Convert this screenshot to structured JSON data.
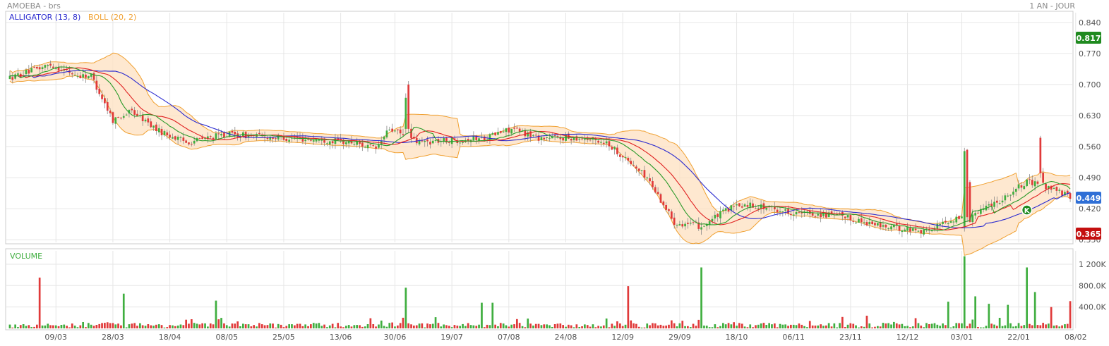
{
  "header": {
    "title": "AMOEBA - brs",
    "period": "1 AN - JOUR"
  },
  "price_panel": {
    "indicators": [
      {
        "label": "ALLIGATOR (13, 8)",
        "color": "#2b2bcf"
      },
      {
        "label": "BOLL (20, 2)",
        "color": "#f0a030"
      }
    ],
    "current_price": "0.817",
    "current_price_color": "#1f8a1f",
    "last_price": "0.449",
    "last_price_color": "#2f6fd6",
    "low_price": "0.365",
    "low_price_color": "#c40f0f",
    "marker_label": "K"
  },
  "volume_panel": {
    "title": "VOLUME"
  },
  "colors": {
    "up": "#3fae3f",
    "down": "#e03a3a",
    "band_fill": "#fde0c0",
    "band_line": "#f0a030",
    "alligator_blue": "#2b2bcf",
    "alligator_red": "#e02020",
    "alligator_green": "#2a9a2a",
    "grid": "#e6e6e6"
  },
  "chart_data": {
    "type": "candlestick",
    "x_tick_labels": [
      "09/03",
      "28/03",
      "18/04",
      "08/05",
      "25/05",
      "13/06",
      "30/06",
      "19/07",
      "07/08",
      "24/08",
      "12/09",
      "29/09",
      "18/10",
      "06/11",
      "23/11",
      "12/12",
      "03/01",
      "22/01",
      "08/02"
    ],
    "price_axis": {
      "ticks": [
        "0.840",
        "0.770",
        "0.700",
        "0.630",
        "0.560",
        "0.490",
        "0.420",
        "0.350"
      ],
      "range": [
        0.344,
        0.862
      ]
    },
    "volume_axis": {
      "ticks": [
        "1 200K",
        "800.0K",
        "400.0K"
      ],
      "range": [
        0,
        1450000
      ]
    },
    "price_keyframes": [
      [
        0,
        0.715
      ],
      [
        15,
        0.745
      ],
      [
        25,
        0.72
      ],
      [
        30,
        0.72
      ],
      [
        38,
        0.62
      ],
      [
        45,
        0.64
      ],
      [
        55,
        0.595
      ],
      [
        65,
        0.57
      ],
      [
        80,
        0.588
      ],
      [
        100,
        0.58
      ],
      [
        115,
        0.575
      ],
      [
        128,
        0.568
      ],
      [
        135,
        0.555
      ],
      [
        140,
        0.6
      ],
      [
        150,
        0.57
      ],
      [
        165,
        0.575
      ],
      [
        175,
        0.58
      ],
      [
        185,
        0.6
      ],
      [
        195,
        0.58
      ],
      [
        210,
        0.58
      ],
      [
        220,
        0.57
      ],
      [
        235,
        0.49
      ],
      [
        245,
        0.39
      ],
      [
        255,
        0.38
      ],
      [
        265,
        0.42
      ],
      [
        272,
        0.43
      ],
      [
        290,
        0.41
      ],
      [
        305,
        0.405
      ],
      [
        322,
        0.38
      ],
      [
        338,
        0.37
      ],
      [
        345,
        0.39
      ],
      [
        355,
        0.41
      ],
      [
        365,
        0.44
      ],
      [
        375,
        0.48
      ],
      [
        383,
        0.47
      ],
      [
        391,
        0.445
      ]
    ],
    "volume_spikes": [
      [
        11,
        950000
      ],
      [
        42,
        650000
      ],
      [
        76,
        520000
      ],
      [
        146,
        760000
      ],
      [
        174,
        480000
      ],
      [
        178,
        480000
      ],
      [
        228,
        790000
      ],
      [
        255,
        1140000
      ],
      [
        346,
        500000
      ],
      [
        352,
        1350000
      ],
      [
        356,
        600000
      ],
      [
        361,
        460000
      ],
      [
        368,
        440000
      ],
      [
        375,
        1140000
      ],
      [
        378,
        680000
      ],
      [
        384,
        400000
      ],
      [
        391,
        510000
      ]
    ],
    "bollinger_period": 20,
    "bollinger_stddev": 2,
    "alligator": {
      "slow": 13,
      "fast": 8
    },
    "marker_index": 375
  }
}
